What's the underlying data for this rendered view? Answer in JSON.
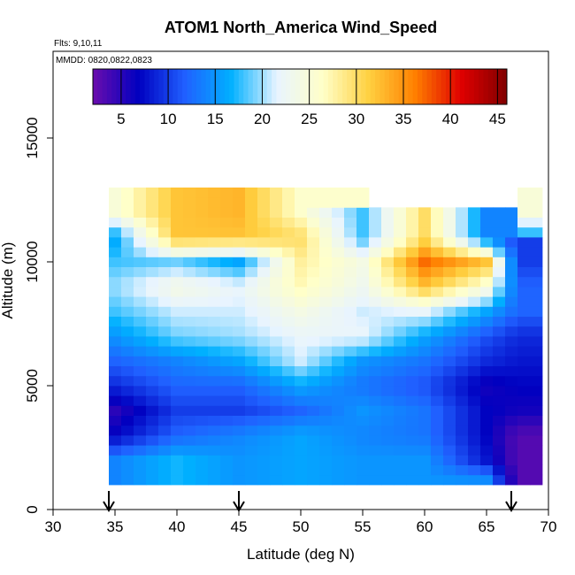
{
  "chart_data": {
    "type": "heatmap",
    "title": "ATOM1 North_America Wind_Speed",
    "flights_label": "Flts: 9,10,11",
    "dates_label": "MMDD: 0820,0822,0823",
    "xlabel": "Latitude (deg N)",
    "ylabel": "Altitude (m)",
    "xlim": [
      30,
      70
    ],
    "ylim": [
      0,
      18500
    ],
    "x_ticks": [
      "30",
      "35",
      "40",
      "45",
      "50",
      "55",
      "60",
      "65",
      "70"
    ],
    "y_ticks": [
      "0",
      "5000",
      "10000",
      "15000"
    ],
    "colorbar": {
      "range": [
        2,
        46
      ],
      "ticks": [
        "5",
        "10",
        "15",
        "20",
        "25",
        "30",
        "35",
        "40",
        "45"
      ],
      "tick_values": [
        5,
        10,
        15,
        20,
        25,
        30,
        35,
        40,
        45
      ],
      "palette": [
        "#6a0dad",
        "#0000c0",
        "#2060ff",
        "#00b0ff",
        "#e8f4ff",
        "#ffffc8",
        "#ffd040",
        "#ff8000",
        "#e00000",
        "#800000"
      ]
    },
    "arrows_latitude": [
      34.5,
      45,
      67
    ],
    "grid": false,
    "data_extent": {
      "lat_range": [
        34.5,
        69.5
      ],
      "alt_range": [
        1000,
        12800
      ]
    },
    "wind_speed_profiles": {
      "altitude_m": [
        1000,
        2000,
        3000,
        4000,
        5000,
        6000,
        7000,
        8000,
        9000,
        10000,
        11000,
        12000
      ],
      "lat_35": [
        null,
        14,
        7,
        5,
        9,
        12,
        15,
        18,
        20,
        18,
        16,
        25
      ],
      "lat_40": [
        null,
        17,
        12,
        10,
        12,
        14,
        19,
        21,
        24,
        19,
        32,
        32
      ],
      "lat_45": [
        null,
        15,
        14,
        10,
        12,
        16,
        20,
        21,
        22,
        16,
        32,
        33
      ],
      "lat_50": [
        null,
        16,
        16,
        12,
        16,
        21,
        22,
        24,
        27,
        28,
        30,
        26
      ],
      "lat_55": [
        15,
        15,
        14,
        15,
        13,
        15,
        22,
        21,
        23,
        24,
        18,
        null
      ],
      "lat_60": [
        15,
        15,
        13,
        13,
        11,
        13,
        16,
        22,
        32,
        37,
        30,
        null
      ],
      "lat_65": [
        16,
        8,
        7,
        7,
        6,
        9,
        11,
        16,
        25,
        32,
        14,
        null
      ],
      "lat_67.5": [
        null,
        3,
        3,
        6,
        7,
        8,
        9,
        12,
        12,
        10,
        null,
        null
      ]
    }
  }
}
